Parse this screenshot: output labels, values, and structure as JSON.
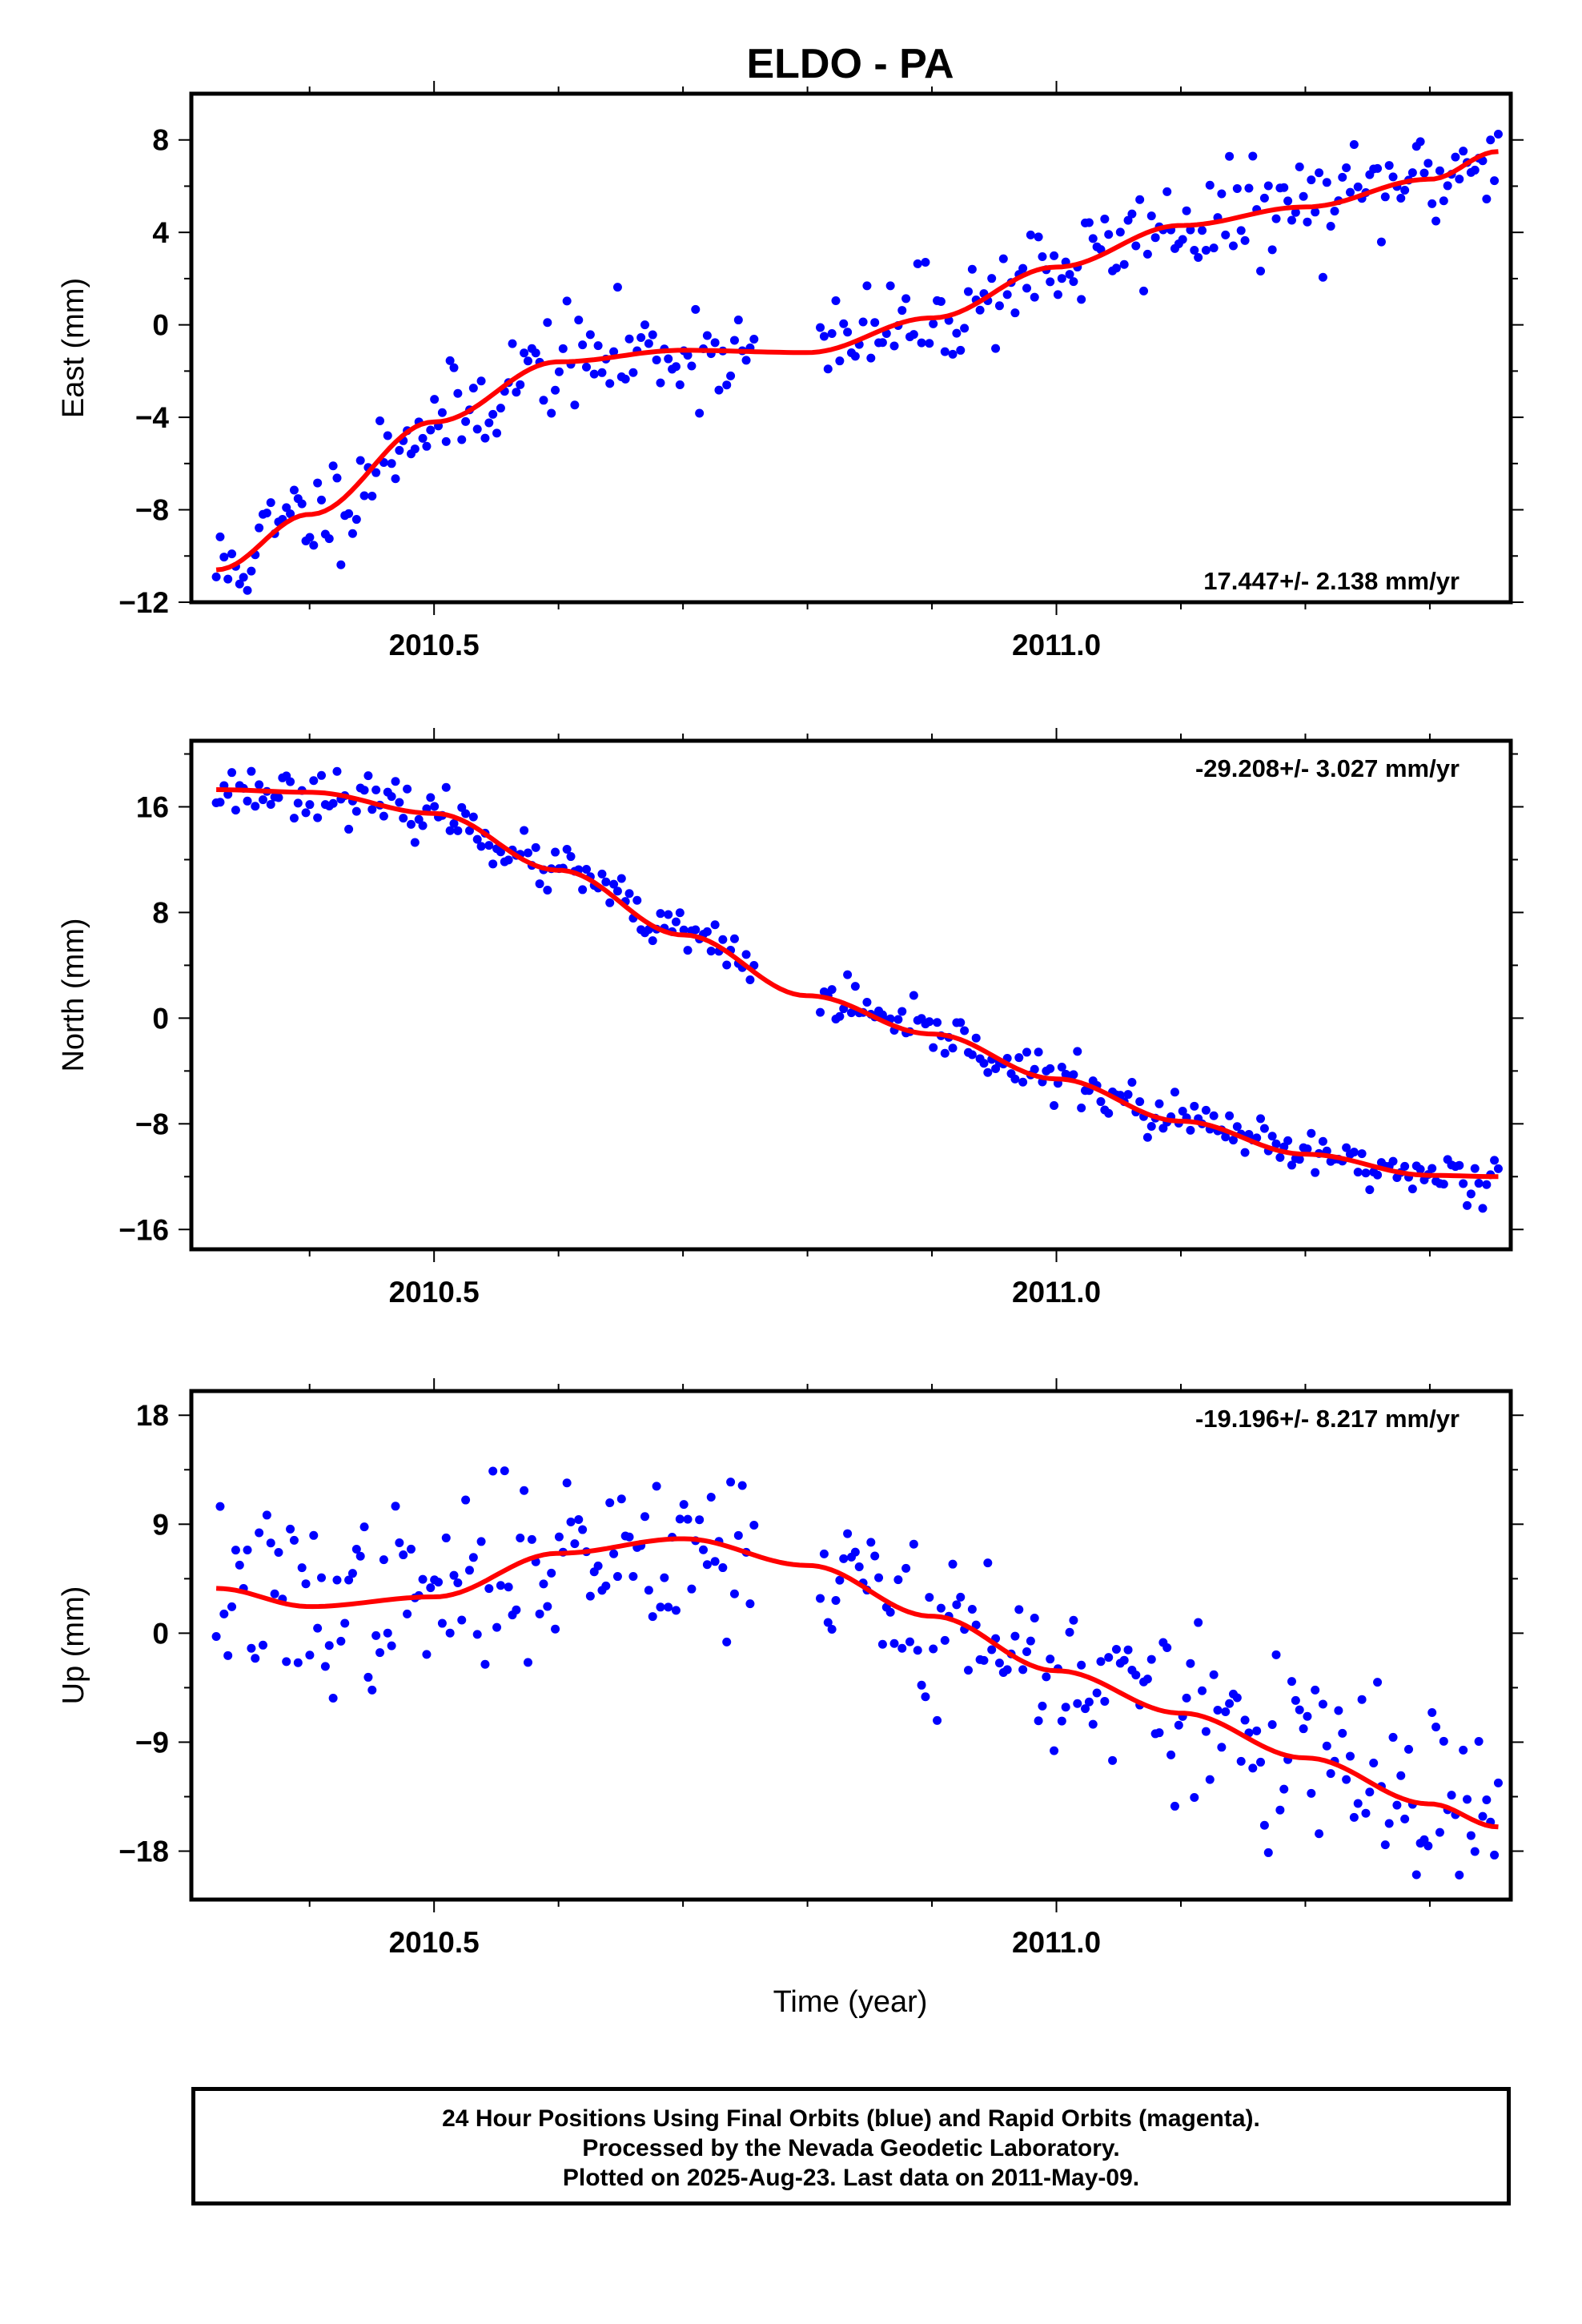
{
  "title": "ELDO - PA",
  "xlabel": "Time (year)",
  "footer": {
    "lines": [
      "24 Hour Positions Using Final Orbits (blue) and Rapid Orbits (magenta).",
      "Processed by the Nevada Geodetic Laboratory.",
      "Plotted on 2025-Aug-23. Last data on 2011-May-09."
    ]
  },
  "colors": {
    "points": "#0000ff",
    "fit": "#ff0000",
    "axes": "#000000"
  },
  "chart_data": [
    {
      "type": "scatter",
      "ylabel": "East (mm)",
      "rate_label": "17.447+/- 2.138 mm/yr",
      "rate_position": "bottom-right",
      "xlim": [
        2010.305,
        2011.365
      ],
      "ylim": [
        -12,
        10
      ],
      "xticks": [
        2010.5,
        2011.0
      ],
      "xtick_labels": [
        "2010.5",
        "2011.0"
      ],
      "yticks": [
        -12,
        -8,
        -4,
        0,
        4,
        8
      ],
      "ytick_labels": [
        "−12",
        "−8",
        "−4",
        "0",
        "4",
        "8"
      ],
      "gaps": [
        [
          2010.76,
          2010.81
        ]
      ],
      "fit_curve": {
        "x": [
          2010.325,
          2010.4,
          2010.5,
          2010.6,
          2010.7,
          2010.8,
          2010.9,
          2011.0,
          2011.1,
          2011.2,
          2011.3,
          2011.355
        ],
        "y": [
          -10.6,
          -8.2,
          -4.2,
          -1.6,
          -1.1,
          -1.2,
          0.3,
          2.5,
          4.3,
          5.1,
          6.3,
          7.5
        ]
      },
      "scatter": {
        "n": 330,
        "noise": 1.1,
        "seed": 11
      }
    },
    {
      "type": "scatter",
      "ylabel": "North (mm)",
      "rate_label": "-29.208+/- 3.027 mm/yr",
      "rate_position": "top-right",
      "xlim": [
        2010.305,
        2011.365
      ],
      "ylim": [
        -17.5,
        21
      ],
      "xticks": [
        2010.5,
        2011.0
      ],
      "xtick_labels": [
        "2010.5",
        "2011.0"
      ],
      "yticks": [
        -16,
        -8,
        0,
        8,
        16
      ],
      "ytick_labels": [
        "−16",
        "−8",
        "0",
        "8",
        "16"
      ],
      "gaps": [
        [
          2010.76,
          2010.81
        ]
      ],
      "fit_curve": {
        "x": [
          2010.325,
          2010.4,
          2010.5,
          2010.6,
          2010.7,
          2010.8,
          2010.9,
          2011.0,
          2011.1,
          2011.2,
          2011.3,
          2011.355
        ],
        "y": [
          17.3,
          17.1,
          15.5,
          11.2,
          6.3,
          1.7,
          -1.2,
          -4.6,
          -7.8,
          -10.3,
          -11.9,
          -12.0
        ]
      },
      "scatter": {
        "n": 330,
        "noise": 0.9,
        "seed": 23
      }
    },
    {
      "type": "scatter",
      "ylabel": "Up (mm)",
      "rate_label": "-19.196+/- 8.217 mm/yr",
      "rate_position": "top-right",
      "xlim": [
        2010.305,
        2011.365
      ],
      "ylim": [
        -22,
        20
      ],
      "xticks": [
        2010.5,
        2011.0
      ],
      "xtick_labels": [
        "2010.5",
        "2011.0"
      ],
      "yticks": [
        -18,
        -9,
        0,
        9,
        18
      ],
      "ytick_labels": [
        "−18",
        "−9",
        "0",
        "9",
        "18"
      ],
      "gaps": [
        [
          2010.76,
          2010.81
        ]
      ],
      "fit_curve": {
        "x": [
          2010.325,
          2010.4,
          2010.5,
          2010.6,
          2010.7,
          2010.8,
          2010.9,
          2011.0,
          2011.1,
          2011.2,
          2011.3,
          2011.355
        ],
        "y": [
          3.7,
          2.2,
          3.0,
          6.6,
          7.8,
          5.6,
          1.4,
          -3.1,
          -6.6,
          -10.3,
          -14.1,
          -16.0
        ]
      },
      "scatter": {
        "n": 330,
        "noise": 3.6,
        "seed": 37
      }
    }
  ]
}
